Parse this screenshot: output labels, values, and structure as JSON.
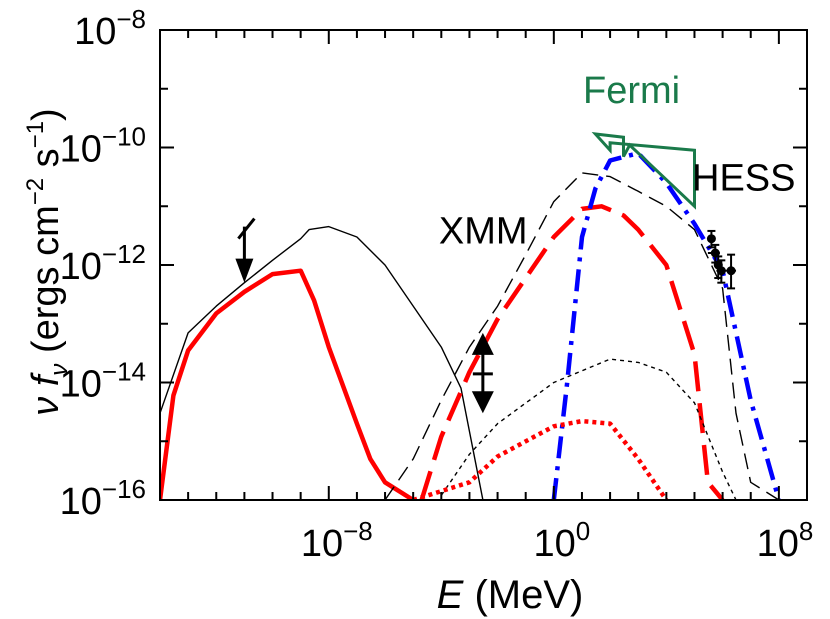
{
  "chart_data": {
    "type": "line",
    "xscale": "log",
    "yscale": "log",
    "xlabel": {
      "var": "E",
      "unit": "(MeV)"
    },
    "ylabel": {
      "nu": "ν",
      "f": "f",
      "sub": "ν",
      "open": "(ergs cm",
      "exp1": "−2",
      "mid": " s",
      "exp2": "−1",
      "close": ")"
    },
    "xlim": [
      1e-14,
      1000000000.0
    ],
    "ylim": [
      1e-16,
      1e-08
    ],
    "x_ticks": [
      {
        "label_base": "10",
        "label_exp": "−8",
        "value": 1e-08
      },
      {
        "label_base": "10",
        "label_exp": "0",
        "value": 1
      },
      {
        "label_base": "10",
        "label_exp": "8",
        "value": 100000000.0
      }
    ],
    "y_ticks": [
      {
        "label_base": "10",
        "label_exp": "−8",
        "value": 1e-08
      },
      {
        "label_base": "10",
        "label_exp": "−10",
        "value": 1e-10
      },
      {
        "label_base": "10",
        "label_exp": "−12",
        "value": 1e-12
      },
      {
        "label_base": "10",
        "label_exp": "−14",
        "value": 1e-14
      },
      {
        "label_base": "10",
        "label_exp": "−16",
        "value": 1e-16
      }
    ],
    "annotations": [
      {
        "text": "XMM",
        "x": 0.003,
        "y": 4e-12,
        "color": "#000000"
      },
      {
        "text": "Fermi",
        "x": 400,
        "y": 1e-09,
        "color": "#1a7a4a"
      },
      {
        "text": "HESS",
        "x": 3000000.0,
        "y": 3.2e-11,
        "color": "#000000"
      }
    ],
    "series": [
      {
        "style": "thin-solid",
        "color": "#000000",
        "width": 1.4,
        "dash": "",
        "points": [
          [
            1e-14,
            3e-15
          ],
          [
            1e-13,
            7e-14
          ],
          [
            1e-12,
            2e-13
          ],
          [
            1e-11,
            5e-13
          ],
          [
            1e-10,
            1.2e-12
          ],
          [
            1e-09,
            2.8e-12
          ],
          [
            2e-09,
            4e-12
          ],
          [
            1e-08,
            4.5e-12
          ],
          [
            1e-07,
            3e-12
          ],
          [
            1e-06,
            1e-12
          ],
          [
            1e-05,
            2e-13
          ],
          [
            0.0001,
            4e-14
          ],
          [
            0.0005,
            8e-15
          ],
          [
            0.003,
            1e-16
          ]
        ]
      },
      {
        "style": "thick-solid",
        "color": "#ff0000",
        "width": 4.5,
        "dash": "",
        "points": [
          [
            1e-14,
            1e-16
          ],
          [
            3e-14,
            6e-15
          ],
          [
            1e-13,
            3.5e-14
          ],
          [
            1e-12,
            1.5e-13
          ],
          [
            1e-11,
            3.5e-13
          ],
          [
            1e-10,
            7e-13
          ],
          [
            1e-09,
            8e-13
          ],
          [
            3e-09,
            2.5e-13
          ],
          [
            1e-08,
            4e-14
          ],
          [
            1e-07,
            2e-15
          ],
          [
            3e-07,
            5e-16
          ],
          [
            1e-06,
            2e-16
          ],
          [
            1e-05,
            1e-16
          ]
        ]
      },
      {
        "style": "thin-dashed",
        "color": "#000000",
        "width": 1.4,
        "dash": "16,8",
        "points": [
          [
            1e-06,
            1e-16
          ],
          [
            1e-05,
            5e-16
          ],
          [
            0.0001,
            5e-15
          ],
          [
            0.001,
            4e-14
          ],
          [
            0.01,
            2e-13
          ],
          [
            0.1,
            1.5e-12
          ],
          [
            1,
            1.2e-11
          ],
          [
            10,
            3.7e-11
          ],
          [
            100,
            3.2e-11
          ],
          [
            1000,
            1.8e-11
          ],
          [
            10000.0,
            1e-11
          ],
          [
            100000.0,
            4e-12
          ],
          [
            1000000.0,
            4e-13
          ],
          [
            3000000.0,
            3e-15
          ],
          [
            10000000.0,
            2e-16
          ],
          [
            100000000.0,
            1e-16
          ]
        ]
      },
      {
        "style": "thick-dashed",
        "color": "#ff0000",
        "width": 4.5,
        "dash": "30,12",
        "points": [
          [
            2e-05,
            1e-16
          ],
          [
            0.0001,
            1.2e-15
          ],
          [
            0.001,
            1.5e-14
          ],
          [
            0.01,
            1.2e-13
          ],
          [
            0.1,
            6e-13
          ],
          [
            1,
            3e-12
          ],
          [
            10,
            9e-12
          ],
          [
            50,
            1e-11
          ],
          [
            300,
            7e-12
          ],
          [
            1000,
            4e-12
          ],
          [
            10000.0,
            1e-12
          ],
          [
            100000.0,
            3e-14
          ],
          [
            300000.0,
            2e-16
          ],
          [
            1000000.0,
            1e-16
          ]
        ]
      },
      {
        "style": "dash-dot",
        "color": "#0000ff",
        "width": 4.5,
        "dash": "22,8,4,8",
        "points": [
          [
            1,
            1e-16
          ],
          [
            3,
            1e-14
          ],
          [
            10,
            3e-12
          ],
          [
            30,
            2e-11
          ],
          [
            100,
            6e-11
          ],
          [
            1000,
            8e-11
          ],
          [
            10000.0,
            2.5e-11
          ],
          [
            100000.0,
            5e-12
          ],
          [
            1000000.0,
            8e-13
          ],
          [
            10000000.0,
            5e-15
          ],
          [
            100000000.0,
            1e-16
          ]
        ]
      },
      {
        "style": "thin-dotted",
        "color": "#000000",
        "width": 1.4,
        "dash": "4,4",
        "points": [
          [
            0.0001,
            1.2e-16
          ],
          [
            0.001,
            6e-16
          ],
          [
            0.01,
            2e-15
          ],
          [
            1,
            1e-14
          ],
          [
            100,
            2.5e-14
          ],
          [
            1000,
            2.2e-14
          ],
          [
            10000.0,
            1.5e-14
          ],
          [
            100000.0,
            4.5e-15
          ],
          [
            1000000.0,
            3e-16
          ],
          [
            3000000.0,
            1e-16
          ]
        ]
      },
      {
        "style": "thick-dotted",
        "color": "#ff0000",
        "width": 4.5,
        "dash": "4,4",
        "points": [
          [
            1e-05,
            1e-16
          ],
          [
            0.001,
            2e-16
          ],
          [
            0.01,
            5.5e-16
          ],
          [
            0.1,
            1e-15
          ],
          [
            1,
            1.8e-15
          ],
          [
            10,
            2.2e-15
          ],
          [
            100,
            2e-15
          ],
          [
            1000,
            5e-16
          ],
          [
            10000.0,
            1e-16
          ]
        ]
      }
    ],
    "upper_limits": [
      {
        "x": 1e-11,
        "y_top": 4.5e-12,
        "y_bot": 5e-13,
        "color": "#000000"
      }
    ],
    "xmm_marker": {
      "x": 0.003,
      "y_up": 7e-14,
      "y_center": 1.4e-14,
      "y_down": 3e-15,
      "color": "#000000"
    },
    "fermi_bowtie": {
      "color": "#1a7a4a",
      "outline": [
        [
          30,
          1.7e-10
        ],
        [
          100,
          9e-11
        ],
        [
          100,
          1.2e-10
        ],
        [
          100000.0,
          9e-11
        ],
        [
          100000.0,
          1e-11
        ],
        [
          500,
          1.1e-10
        ],
        [
          300,
          7e-11
        ],
        [
          300,
          1.5e-10
        ]
      ]
    },
    "hess_points": [
      {
        "x": 400000.0,
        "y": 2.8e-12,
        "xlo": 300000.0,
        "xhi": 500000.0,
        "ylo": 2e-12,
        "yhi": 3.8e-12
      },
      {
        "x": 550000.0,
        "y": 1.6e-12,
        "xlo": 300000.0,
        "xhi": 800000.0,
        "ylo": 1.1e-12,
        "yhi": 2.2e-12
      },
      {
        "x": 700000.0,
        "y": 1e-12,
        "xlo": 500000.0,
        "xhi": 1000000.0,
        "ylo": 6e-13,
        "yhi": 1.4e-12
      },
      {
        "x": 900000.0,
        "y": 8e-13,
        "xlo": 600000.0,
        "xhi": 1400000.0,
        "ylo": 5e-13,
        "yhi": 1.2e-12
      },
      {
        "x": 2000000.0,
        "y": 8e-13,
        "xlo": 1400000.0,
        "xhi": 3000000.0,
        "ylo": 4e-13,
        "yhi": 1.5e-12
      }
    ]
  }
}
